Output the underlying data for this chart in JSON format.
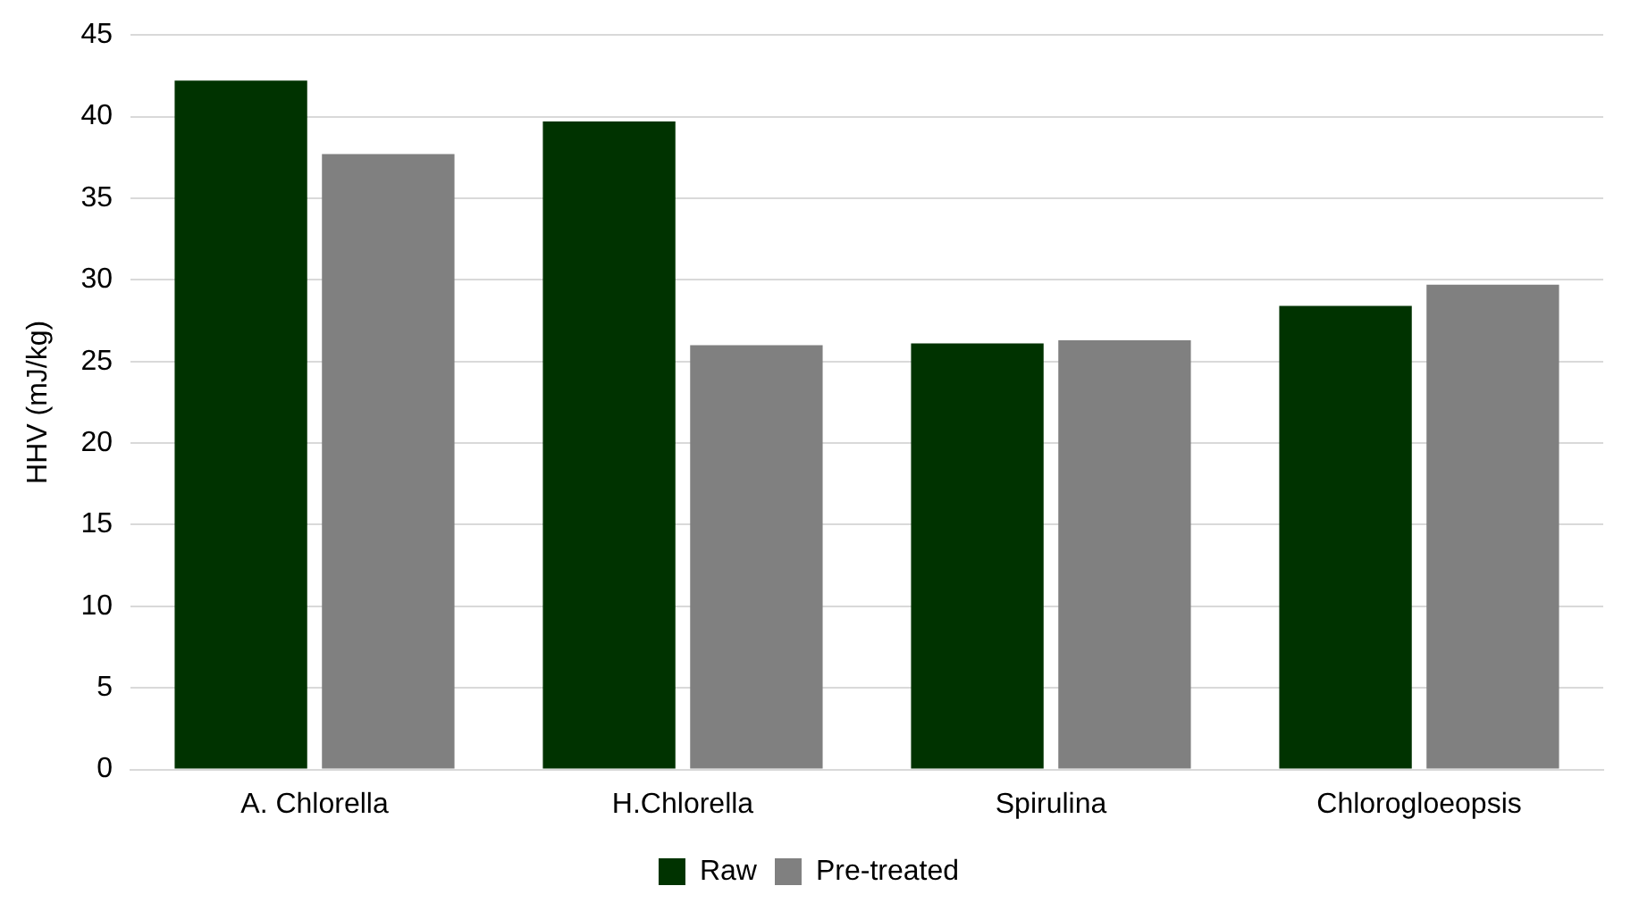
{
  "chart_data": {
    "type": "bar",
    "ylabel": "HHV (mJ/kg)",
    "categories": [
      "A. Chlorella",
      "H.Chlorella",
      "Spirulina",
      "Chlorogloeopsis"
    ],
    "series": [
      {
        "name": "Raw",
        "color": "#003300",
        "values": [
          42.2,
          39.7,
          26.1,
          28.4
        ]
      },
      {
        "name": "Pre-treated",
        "color": "#808080",
        "values": [
          37.7,
          26.0,
          26.3,
          29.7
        ]
      }
    ],
    "ylim": [
      0,
      45
    ],
    "yticks": [
      0,
      5,
      10,
      15,
      20,
      25,
      30,
      35,
      40,
      45
    ],
    "grid": "y",
    "legend": "bottom"
  }
}
